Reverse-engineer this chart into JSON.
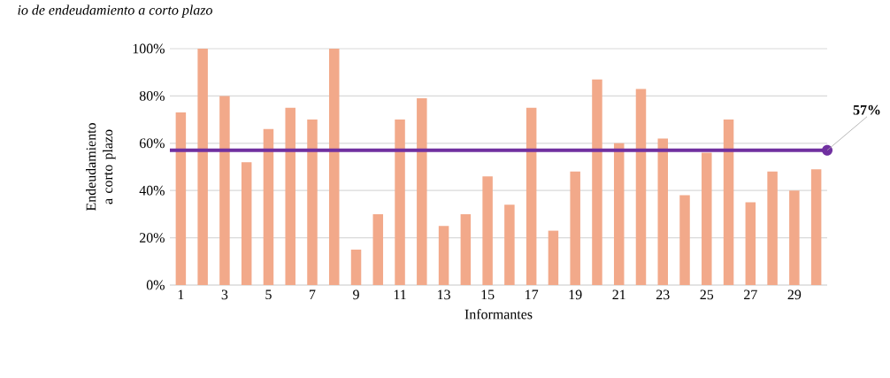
{
  "chart_data": {
    "type": "bar",
    "title": "io de endeudamiento a corto plazo",
    "xlabel": "Informantes",
    "ylabel": "Endeudamiento a corto plazo",
    "categories": [
      "1",
      null,
      "3",
      null,
      "5",
      null,
      "7",
      null,
      "9",
      null,
      "11",
      null,
      "13",
      null,
      "15",
      null,
      "17",
      null,
      "19",
      null,
      "21",
      null,
      "23",
      null,
      "25",
      null,
      "27",
      null,
      "29",
      null
    ],
    "values": [
      73,
      100,
      80,
      52,
      66,
      75,
      70,
      100,
      15,
      30,
      70,
      79,
      25,
      30,
      46,
      34,
      75,
      23,
      48,
      87,
      60,
      83,
      62,
      38,
      56,
      70,
      35,
      48,
      40,
      49
    ],
    "color": "#f2a98a",
    "ylim": [
      0,
      100
    ],
    "yticks": [
      {
        "value": 0,
        "label": "0%"
      },
      {
        "value": 20,
        "label": "20%"
      },
      {
        "value": 40,
        "label": "40%"
      },
      {
        "value": 60,
        "label": "60%"
      },
      {
        "value": 80,
        "label": "80%"
      },
      {
        "value": 100,
        "label": "100%"
      }
    ],
    "grid": "y",
    "ref_lines": [
      {
        "axis": "y",
        "value": 57,
        "label": "57%",
        "color": "#7030a0"
      }
    ]
  }
}
